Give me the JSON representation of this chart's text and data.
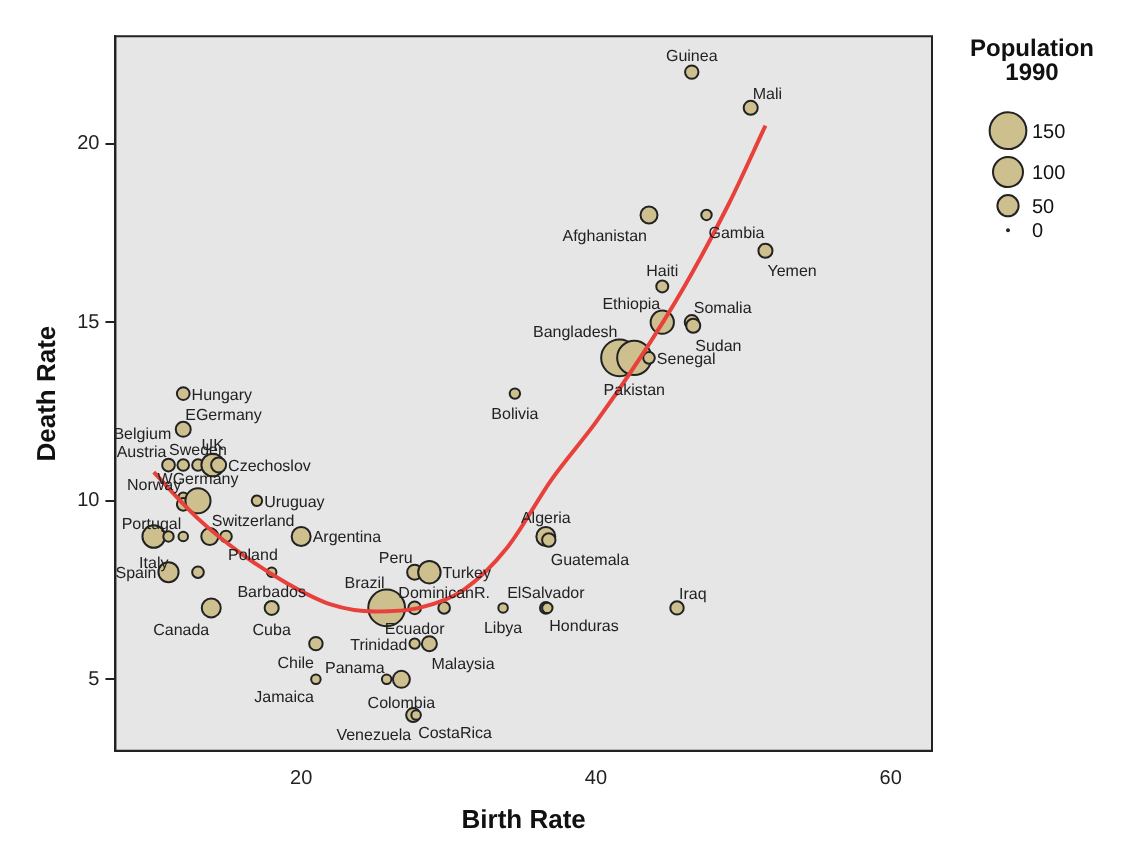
{
  "chart_data": {
    "type": "bubble",
    "xlabel": "Birth Rate",
    "ylabel": "Death Rate",
    "legend_title": "Population 1990",
    "size_legend": [
      150,
      100,
      50,
      0
    ],
    "xlim": [
      7.4,
      62.8
    ],
    "xticks": [
      20,
      40,
      60
    ],
    "ylim": [
      3,
      23
    ],
    "yticks": [
      5,
      10,
      15,
      20
    ],
    "grid": false,
    "series": [
      {
        "type": "bubble",
        "color": "#cdbf8e",
        "x": [
          46.5,
          50.5,
          43.6,
          47.5,
          51.5,
          44.5,
          44.5,
          46.5,
          46.6,
          41.6,
          42.6,
          43.6,
          34.5,
          12.0,
          12.0,
          11.0,
          12.0,
          13.0,
          14.0,
          14.4,
          12.0,
          12.0,
          13.0,
          17.0,
          10.0,
          11.0,
          12.0,
          13.8,
          14.9,
          20.0,
          11.0,
          13.0,
          18.0,
          27.7,
          28.7,
          13.9,
          18.0,
          25.8,
          27.7,
          29.7,
          33.7,
          36.6,
          36.7,
          45.5,
          21.0,
          27.7,
          28.7,
          21.0,
          25.8,
          26.8,
          27.6,
          27.8,
          36.6,
          36.8
        ],
        "values": [
          22.0,
          21.0,
          18.0,
          18.0,
          17.0,
          16.0,
          15.0,
          15.0,
          14.9,
          14.0,
          14.0,
          14.0,
          13.0,
          13.0,
          12.0,
          11.0,
          11.0,
          11.0,
          11.0,
          11.0,
          10.1,
          9.9,
          10.0,
          10.0,
          9.0,
          9.0,
          9.0,
          9.0,
          9.0,
          9.0,
          8.0,
          8.0,
          8.0,
          8.0,
          8.0,
          7.0,
          7.0,
          7.0,
          7.0,
          7.0,
          7.0,
          7.0,
          7.0,
          7.0,
          6.0,
          6.0,
          6.0,
          5.0,
          5.0,
          5.0,
          4.0,
          4.0,
          9.0,
          8.9
        ],
        "sizes": [
          20,
          22,
          32,
          12,
          22,
          16,
          60,
          22,
          22,
          150,
          130,
          15,
          12,
          18,
          25,
          18,
          15,
          15,
          57,
          25,
          10,
          18,
          70,
          12,
          57,
          12,
          10,
          32,
          15,
          40,
          45,
          15,
          10,
          25,
          56,
          40,
          22,
          150,
          18,
          15,
          10,
          15,
          12,
          20,
          20,
          12,
          25,
          10,
          10,
          32,
          22,
          10,
          40,
          20
        ],
        "value_labels": [
          "Guinea",
          "Mali",
          "Afghanistan",
          "Gambia",
          "Yemen",
          "Haiti",
          "Ethiopia",
          "Somalia",
          "Sudan",
          "Bangladesh",
          "Pakistan",
          "Senegal",
          "Bolivia",
          "Hungary",
          "EGermany",
          "Austria",
          "Belgium",
          "Sweden",
          "UK",
          "Czechoslov",
          "Norway",
          "Portugal",
          "WGermany",
          "Uruguay",
          "Italy",
          null,
          null,
          "Switzerland",
          "Poland",
          "Argentina",
          "Spain",
          null,
          "Barbados",
          "Peru",
          "Turkey",
          "Canada",
          "Cuba",
          "Brazil",
          "Ecuador",
          "DominicanR.",
          "Libya",
          "ElSalvador",
          "Honduras",
          "Iraq",
          "Chile",
          "Trinidad",
          "Malaysia",
          "Jamaica",
          "Panama",
          "Colombia",
          "Venezuela",
          "CostaRica",
          "Algeria",
          "Guatemala"
        ]
      },
      {
        "type": "line",
        "color": "#e8403a",
        "x": [
          10,
          13,
          16,
          19,
          22,
          25,
          28,
          31,
          34,
          37,
          40,
          43,
          46,
          49,
          51.5
        ],
        "values": [
          10.8,
          9.5,
          8.5,
          7.7,
          7.1,
          6.9,
          7.0,
          7.5,
          8.7,
          10.6,
          12.2,
          14.0,
          16.0,
          18.3,
          20.5
        ]
      }
    ]
  }
}
